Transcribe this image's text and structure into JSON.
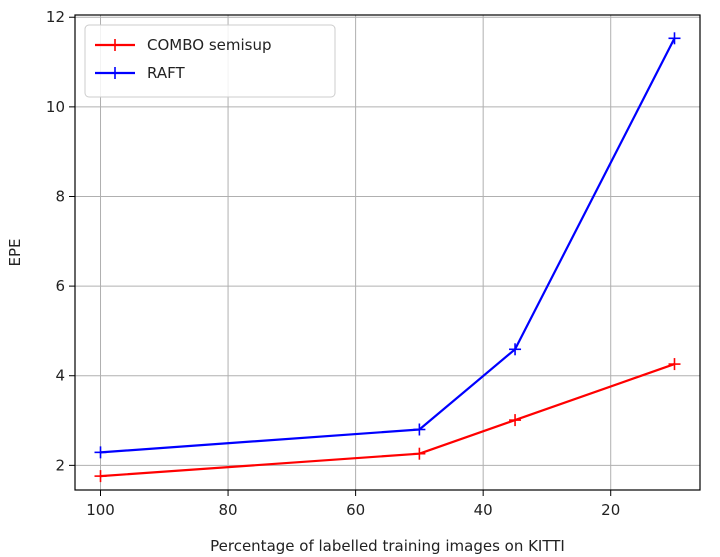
{
  "chart_data": {
    "type": "line",
    "xlabel": "Percentage of labelled training images on KITTI",
    "ylabel": "EPE",
    "x_inverted": true,
    "xlim": [
      104,
      6
    ],
    "ylim": [
      1.45,
      12.05
    ],
    "xticks": [
      100,
      80,
      60,
      40,
      20
    ],
    "yticks": [
      2,
      4,
      6,
      8,
      10,
      12
    ],
    "grid": true,
    "legend_position": "top-left",
    "series": [
      {
        "name": "COMBO semisup",
        "color": "#ff0000",
        "marker": "+",
        "x": [
          100,
          50,
          35,
          10
        ],
        "y": [
          1.76,
          2.26,
          3.01,
          4.26
        ]
      },
      {
        "name": "RAFT",
        "color": "#0000ff",
        "marker": "+",
        "x": [
          100,
          50,
          35,
          10
        ],
        "y": [
          2.29,
          2.8,
          4.59,
          11.53
        ]
      }
    ]
  }
}
